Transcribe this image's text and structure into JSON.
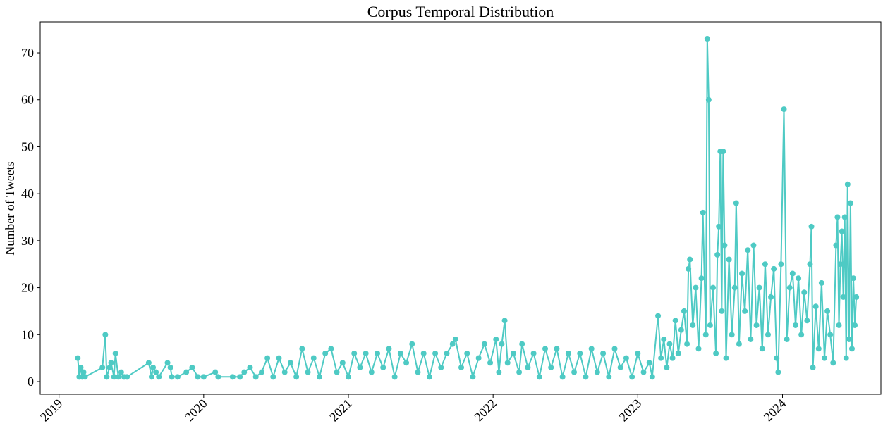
{
  "chart_data": {
    "type": "line",
    "title": "Corpus Temporal Distribution",
    "y_label": "Number of Tweets",
    "color": "#4ecac4",
    "xlim": [
      2018.87,
      2024.68
    ],
    "ylim": [
      -2.7,
      76.6
    ],
    "xticks": [
      2019,
      2020,
      2021,
      2022,
      2023,
      2024
    ],
    "yticks": [
      0,
      10,
      20,
      30,
      40,
      50,
      60,
      70
    ],
    "x": [
      2019.13,
      2019.14,
      2019.15,
      2019.16,
      2019.17,
      2019.18,
      2019.3,
      2019.32,
      2019.33,
      2019.35,
      2019.36,
      2019.38,
      2019.39,
      2019.41,
      2019.43,
      2019.45,
      2019.47,
      2019.62,
      2019.64,
      2019.65,
      2019.67,
      2019.69,
      2019.75,
      2019.77,
      2019.78,
      2019.82,
      2019.88,
      2019.92,
      2019.96,
      2020.0,
      2020.08,
      2020.1,
      2020.2,
      2020.25,
      2020.28,
      2020.32,
      2020.36,
      2020.4,
      2020.44,
      2020.48,
      2020.52,
      2020.56,
      2020.6,
      2020.64,
      2020.68,
      2020.72,
      2020.76,
      2020.8,
      2020.84,
      2020.88,
      2020.92,
      2020.96,
      2021.0,
      2021.04,
      2021.08,
      2021.12,
      2021.16,
      2021.2,
      2021.24,
      2021.28,
      2021.32,
      2021.36,
      2021.4,
      2021.44,
      2021.48,
      2021.52,
      2021.56,
      2021.6,
      2021.64,
      2021.68,
      2021.72,
      2021.74,
      2021.78,
      2021.82,
      2021.86,
      2021.9,
      2021.94,
      2021.98,
      2022.02,
      2022.04,
      2022.06,
      2022.08,
      2022.1,
      2022.14,
      2022.18,
      2022.2,
      2022.24,
      2022.28,
      2022.32,
      2022.36,
      2022.4,
      2022.44,
      2022.48,
      2022.52,
      2022.56,
      2022.6,
      2022.64,
      2022.68,
      2022.72,
      2022.76,
      2022.8,
      2022.84,
      2022.88,
      2022.92,
      2022.96,
      2023.0,
      2023.04,
      2023.08,
      2023.1,
      2023.14,
      2023.16,
      2023.18,
      2023.2,
      2023.22,
      2023.24,
      2023.26,
      2023.28,
      2023.3,
      2023.32,
      2023.34,
      2023.35,
      2023.36,
      2023.38,
      2023.4,
      2023.42,
      2023.44,
      2023.45,
      2023.47,
      2023.48,
      2023.49,
      2023.5,
      2023.52,
      2023.54,
      2023.55,
      2023.56,
      2023.57,
      2023.58,
      2023.59,
      2023.6,
      2023.61,
      2023.63,
      2023.65,
      2023.67,
      2023.68,
      2023.7,
      2023.72,
      2023.74,
      2023.76,
      2023.78,
      2023.8,
      2023.82,
      2023.84,
      2023.86,
      2023.88,
      2023.9,
      2023.92,
      2023.94,
      2023.96,
      2023.97,
      2023.99,
      2024.01,
      2024.03,
      2024.05,
      2024.07,
      2024.09,
      2024.11,
      2024.13,
      2024.15,
      2024.17,
      2024.19,
      2024.2,
      2024.21,
      2024.23,
      2024.25,
      2024.27,
      2024.29,
      2024.31,
      2024.33,
      2024.35,
      2024.37,
      2024.38,
      2024.39,
      2024.4,
      2024.41,
      2024.42,
      2024.43,
      2024.44,
      2024.45,
      2024.46,
      2024.47,
      2024.48,
      2024.49,
      2024.5,
      2024.51
    ],
    "values": [
      5,
      1,
      3,
      1,
      2,
      1,
      3,
      10,
      1,
      3,
      4,
      1,
      6,
      1,
      2,
      1,
      1,
      4,
      1,
      3,
      2,
      1,
      4,
      3,
      1,
      1,
      2,
      3,
      1,
      1,
      2,
      1,
      1,
      1,
      2,
      3,
      1,
      2,
      5,
      1,
      5,
      2,
      4,
      1,
      7,
      2,
      5,
      1,
      6,
      7,
      2,
      4,
      1,
      6,
      3,
      6,
      2,
      6,
      3,
      7,
      1,
      6,
      4,
      8,
      2,
      6,
      1,
      6,
      3,
      6,
      8,
      9,
      3,
      6,
      1,
      5,
      8,
      4,
      9,
      2,
      8,
      13,
      4,
      6,
      2,
      8,
      3,
      6,
      1,
      7,
      3,
      7,
      1,
      6,
      2,
      6,
      1,
      7,
      2,
      6,
      1,
      7,
      3,
      5,
      1,
      6,
      2,
      4,
      1,
      14,
      5,
      9,
      3,
      8,
      5,
      13,
      6,
      11,
      15,
      8,
      24,
      26,
      12,
      20,
      7,
      22,
      36,
      10,
      73,
      60,
      12,
      20,
      6,
      27,
      33,
      49,
      15,
      49,
      29,
      5,
      26,
      10,
      20,
      38,
      8,
      23,
      15,
      28,
      9,
      29,
      12,
      20,
      7,
      25,
      10,
      18,
      24,
      5,
      2,
      25,
      58,
      9,
      20,
      23,
      12,
      22,
      10,
      19,
      13,
      25,
      33,
      3,
      16,
      7,
      21,
      5,
      15,
      10,
      4,
      29,
      35,
      12,
      25,
      32,
      18,
      35,
      5,
      42,
      9,
      38,
      7,
      22,
      12,
      18
    ]
  }
}
